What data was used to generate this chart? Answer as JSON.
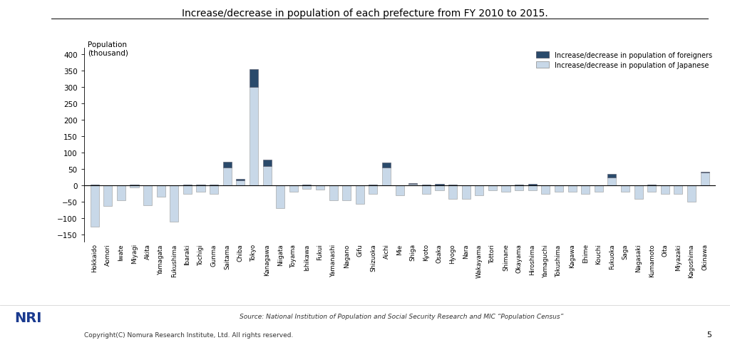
{
  "title": "Increase/decrease in population of each prefecture from FY 2010 to 2015.",
  "ylim": [
    -170,
    420
  ],
  "yticks": [
    -150,
    -100,
    -50,
    0,
    50,
    100,
    150,
    200,
    250,
    300,
    350,
    400
  ],
  "prefectures": [
    "Hokkaido",
    "Aomori",
    "Iwate",
    "Miyagi",
    "Akita",
    "Yamagata",
    "Fukushima",
    "Ibaraki",
    "Tochigi",
    "Gunma",
    "Saitama",
    "Chiba",
    "Tokyo",
    "Kanagawa",
    "Niigata",
    "Toyama",
    "Ishikawa",
    "Fukui",
    "Yamanashi",
    "Nagano",
    "Gifu",
    "Shizuoka",
    "Aichi",
    "Mie",
    "Shiga",
    "Kyoto",
    "Osaka",
    "Hyogo",
    "Nara",
    "Wakayama",
    "Tottori",
    "Shimane",
    "Okayama",
    "Hiroshima",
    "Yamaguchi",
    "Tokushima",
    "Kagawa",
    "Ehime",
    "Kouchi",
    "Fukuoka",
    "Saga",
    "Nagasaki",
    "Kumamoto",
    "Oita",
    "Miyazaki",
    "Kagoshima",
    "Okinawa"
  ],
  "japanese": [
    -125,
    -63,
    -45,
    -5,
    -60,
    -35,
    -110,
    -25,
    -20,
    -25,
    55,
    15,
    300,
    60,
    -70,
    -20,
    -10,
    -12,
    -45,
    -45,
    -55,
    -25,
    55,
    -30,
    5,
    -25,
    -15,
    -40,
    -40,
    -30,
    -15,
    -20,
    -15,
    -15,
    -25,
    -20,
    -20,
    -25,
    -20,
    25,
    -20,
    -40,
    -20,
    -25,
    -25,
    -50,
    40
  ],
  "foreigners": [
    2,
    0,
    0,
    2,
    0,
    0,
    0,
    2,
    2,
    2,
    17,
    5,
    55,
    18,
    0,
    0,
    2,
    0,
    0,
    0,
    0,
    2,
    15,
    0,
    2,
    2,
    5,
    2,
    0,
    0,
    0,
    0,
    2,
    5,
    0,
    0,
    0,
    0,
    0,
    10,
    0,
    0,
    2,
    0,
    0,
    0,
    2
  ],
  "color_japanese": "#c8d8e8",
  "color_foreigners": "#2a4a6b",
  "color_background": "#ffffff",
  "legend_foreigners": "Increase/decrease in population of foreigners",
  "legend_japanese": "Increase/decrease in population of Japanese",
  "source_text": "Source: National Institution of Population and Social Security Research and MIC “Population Census”",
  "footer_text": "Copyright(C) Nomura Research Institute, Ltd. All rights reserved.",
  "page_number": "5",
  "ylabel_line1": "Population",
  "ylabel_line2": "(thousand)"
}
